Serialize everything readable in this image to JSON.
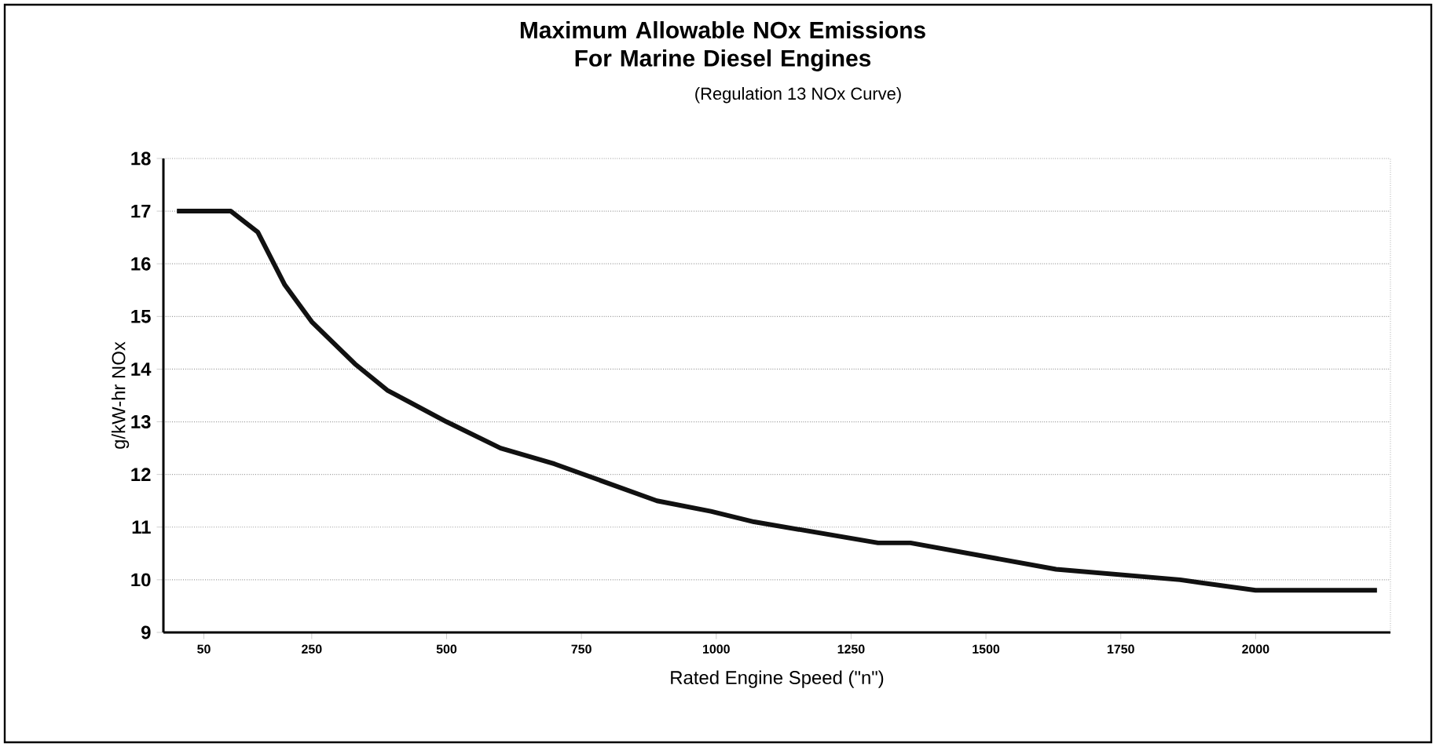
{
  "chart_data": {
    "type": "line",
    "title": "Maximum Allowable NOx Emissions For Marine Diesel Engines",
    "subtitle": "(Regulation 13 NOx Curve)",
    "xlabel": "Rated Engine Speed (\"n\")",
    "ylabel": "g/kW-hr NOx",
    "x": [
      0,
      100,
      150,
      200,
      250,
      330,
      390,
      500,
      600,
      700,
      890,
      990,
      1070,
      1300,
      1360,
      1630,
      1860,
      2000,
      2225
    ],
    "series": [
      {
        "color": "#111111",
        "values": [
          17,
          17,
          16.6,
          15.6,
          14.9,
          14.1,
          13.6,
          13.0,
          12.5,
          12.2,
          11.5,
          11.3,
          11.1,
          10.7,
          10.7,
          10.2,
          10.0,
          9.8,
          9.8
        ]
      }
    ],
    "xlim": [
      -25,
      2250
    ],
    "ylim": [
      9,
      18
    ],
    "xticks": [
      50,
      250,
      500,
      750,
      1000,
      1250,
      1500,
      1750,
      2000
    ],
    "yticks": [
      9,
      10,
      11,
      12,
      13,
      14,
      15,
      16,
      17,
      18
    ],
    "grid": "y",
    "marker": "none",
    "line_style": "solid"
  }
}
